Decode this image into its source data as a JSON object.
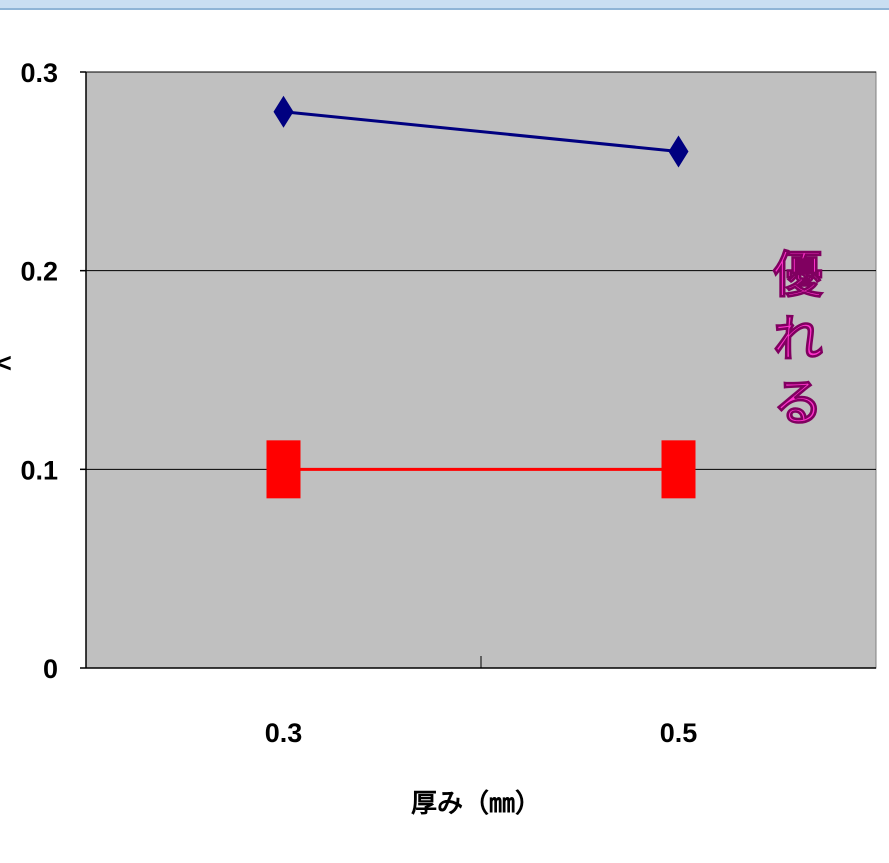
{
  "chart_data": {
    "type": "line",
    "categories": [
      "0.3",
      "0.5"
    ],
    "series": [
      {
        "values": [
          0.28,
          0.26
        ],
        "color": "#000080",
        "marker": "diamond"
      },
      {
        "values": [
          0.1,
          0.1
        ],
        "color": "#ff0000",
        "marker": "square"
      }
    ],
    "ylim": [
      0,
      0.3
    ],
    "yticks": [
      "0",
      "0.1",
      "0.2",
      "0.3"
    ],
    "xlabel": "厚み（㎜）",
    "ylabel_partial": "<",
    "annotation": "優れる",
    "annotation_color": "#ff33cc",
    "plot_background": "#c0c0c0",
    "grid": true
  }
}
